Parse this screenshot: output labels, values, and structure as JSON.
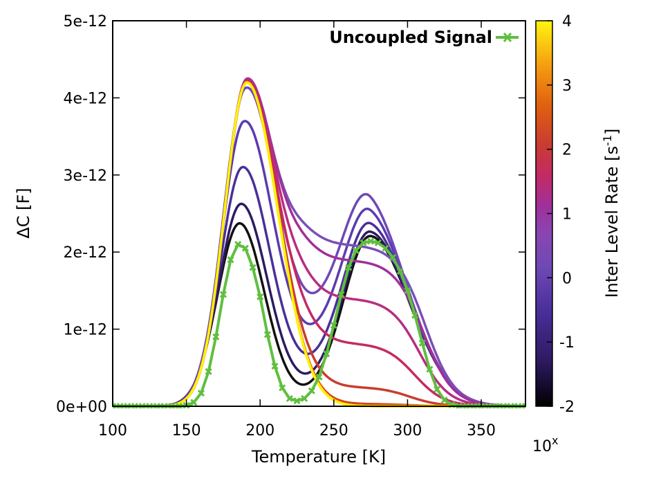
{
  "chart_data": {
    "type": "line",
    "xlabel": "Temperature [K]",
    "ylabel": "ΔC [F]",
    "xlim": [
      100,
      380
    ],
    "ylim": [
      0,
      5e-12
    ],
    "x_ticks": [
      100,
      150,
      200,
      250,
      300,
      350
    ],
    "x_tick_labels": [
      "100",
      "150",
      "200",
      "250",
      "300",
      "350"
    ],
    "y_ticks": [
      0,
      1e-12,
      2e-12,
      3e-12,
      4e-12,
      5e-12
    ],
    "y_tick_labels": [
      "0e+00",
      "1e-12",
      "2e-12",
      "3e-12",
      "4e-12",
      "5e-12"
    ],
    "grid": false,
    "legend": {
      "position": "top-right",
      "entries": [
        "Uncoupled Signal"
      ]
    },
    "colorbar": {
      "label": "Inter Level Rate [s-1]",
      "label_main": "Inter Level Rate [s",
      "label_sup": "-1",
      "label_end": "]",
      "range": [
        -2,
        4
      ],
      "ticks": [
        -2,
        -1,
        0,
        1,
        2,
        3,
        4
      ],
      "tick_labels": [
        "-2",
        "-1",
        "0",
        "1",
        "2",
        "3",
        "4"
      ],
      "multiplier_base": "10",
      "multiplier_exp": "x",
      "palette": [
        "#000000",
        "#2e1a63",
        "#5b3bb0",
        "#7a4fb8",
        "#a0309a",
        "#c42a63",
        "#c93c30",
        "#e06010",
        "#f59a10",
        "#fed000",
        "#fff510"
      ]
    },
    "uncoupled_color": "#5fbf3f",
    "uncoupled": {
      "name": "Uncoupled Signal",
      "x": [
        100,
        105,
        110,
        115,
        120,
        125,
        130,
        135,
        140,
        145,
        150,
        155,
        160,
        165,
        170,
        175,
        180,
        185,
        190,
        195,
        200,
        205,
        210,
        215,
        220,
        225,
        230,
        235,
        240,
        245,
        250,
        255,
        260,
        265,
        270,
        275,
        280,
        285,
        290,
        295,
        300,
        305,
        310,
        315,
        320,
        325,
        330,
        335,
        340,
        345,
        350,
        355,
        360,
        365,
        370,
        375,
        380
      ],
      "y": [
        0,
        0,
        0,
        0,
        0,
        0,
        0,
        0,
        0,
        0,
        1e-14,
        5e-14,
        1.7e-13,
        4.5e-13,
        9e-13,
        1.45e-12,
        1.9e-12,
        2.1e-12,
        2.05e-12,
        1.8e-12,
        1.42e-12,
        9.3e-13,
        5.2e-13,
        2.4e-13,
        1e-13,
        7e-14,
        1e-13,
        2e-13,
        3.8e-13,
        6.8e-13,
        1.05e-12,
        1.45e-12,
        1.8e-12,
        2.02e-12,
        2.12e-12,
        2.14e-12,
        2.12e-12,
        2.05e-12,
        1.93e-12,
        1.75e-12,
        1.5e-12,
        1.18e-12,
        8.2e-13,
        4.8e-13,
        2.2e-13,
        8e-14,
        2e-14,
        0,
        0,
        0,
        0,
        0,
        0,
        0,
        0,
        0,
        0
      ]
    },
    "series": [
      {
        "rate_exp": -2.0,
        "color": "#111111",
        "peak1": 2.36e-12,
        "plateau": 0.0,
        "hump": 2.14e-12,
        "dip": 2.2e-13
      },
      {
        "rate_exp": -1.6,
        "color": "#2e1a63",
        "peak1": 2.6e-12,
        "plateau": 0.0,
        "hump": 2.14e-12,
        "dip": 4e-13
      },
      {
        "rate_exp": -1.2,
        "color": "#4a2f9a",
        "peak1": 3.05e-12,
        "plateau": 0.0,
        "hump": 2.14e-12,
        "dip": 7.5e-13
      },
      {
        "rate_exp": -0.8,
        "color": "#5b3bb0",
        "peak1": 3.6e-12,
        "plateau": 0.0,
        "hump": 2.14e-12,
        "dip": 1.3e-12
      },
      {
        "rate_exp": -0.4,
        "color": "#6f48b5",
        "peak1": 3.98e-12,
        "plateau": 0.0,
        "hump": 2.14e-12,
        "dip": 1.85e-12
      },
      {
        "rate_exp": 0.0,
        "color": "#7a4fb8",
        "peak1": 4.15e-12,
        "plateau": 2.1e-12,
        "hump": 0.0,
        "dip": 0.0
      },
      {
        "rate_exp": 0.4,
        "color": "#a0309a",
        "peak1": 4.2e-12,
        "plateau": 1.9e-12,
        "hump": 0.0,
        "dip": 0.0
      },
      {
        "rate_exp": 0.8,
        "color": "#b82d80",
        "peak1": 4.2e-12,
        "plateau": 1.4e-12,
        "hump": 0.0,
        "dip": 0.0
      },
      {
        "rate_exp": 1.2,
        "color": "#c42a63",
        "peak1": 4.2e-12,
        "plateau": 8.2e-13,
        "hump": 0.0,
        "dip": 0.0
      },
      {
        "rate_exp": 1.6,
        "color": "#c93c30",
        "peak1": 4.2e-12,
        "plateau": 2.5e-13,
        "hump": 0.0,
        "dip": 0.0
      },
      {
        "rate_exp": 2.0,
        "color": "#d4481e",
        "peak1": 4.2e-12,
        "plateau": 3e-14,
        "hump": 0.0,
        "dip": 0.0
      },
      {
        "rate_exp": 2.5,
        "color": "#e06010",
        "peak1": 4.2e-12,
        "plateau": 0.0,
        "hump": 0.0,
        "dip": 0.0
      },
      {
        "rate_exp": 3.0,
        "color": "#f59a10",
        "peak1": 4.2e-12,
        "plateau": 0.0,
        "hump": 0.0,
        "dip": 0.0
      },
      {
        "rate_exp": 3.5,
        "color": "#fed000",
        "peak1": 4.2e-12,
        "plateau": 0.0,
        "hump": 0.0,
        "dip": 0.0
      },
      {
        "rate_exp": 4.0,
        "color": "#fff200",
        "peak1": 4.2e-12,
        "plateau": 0.0,
        "hump": 0.0,
        "dip": 0.0
      }
    ]
  }
}
